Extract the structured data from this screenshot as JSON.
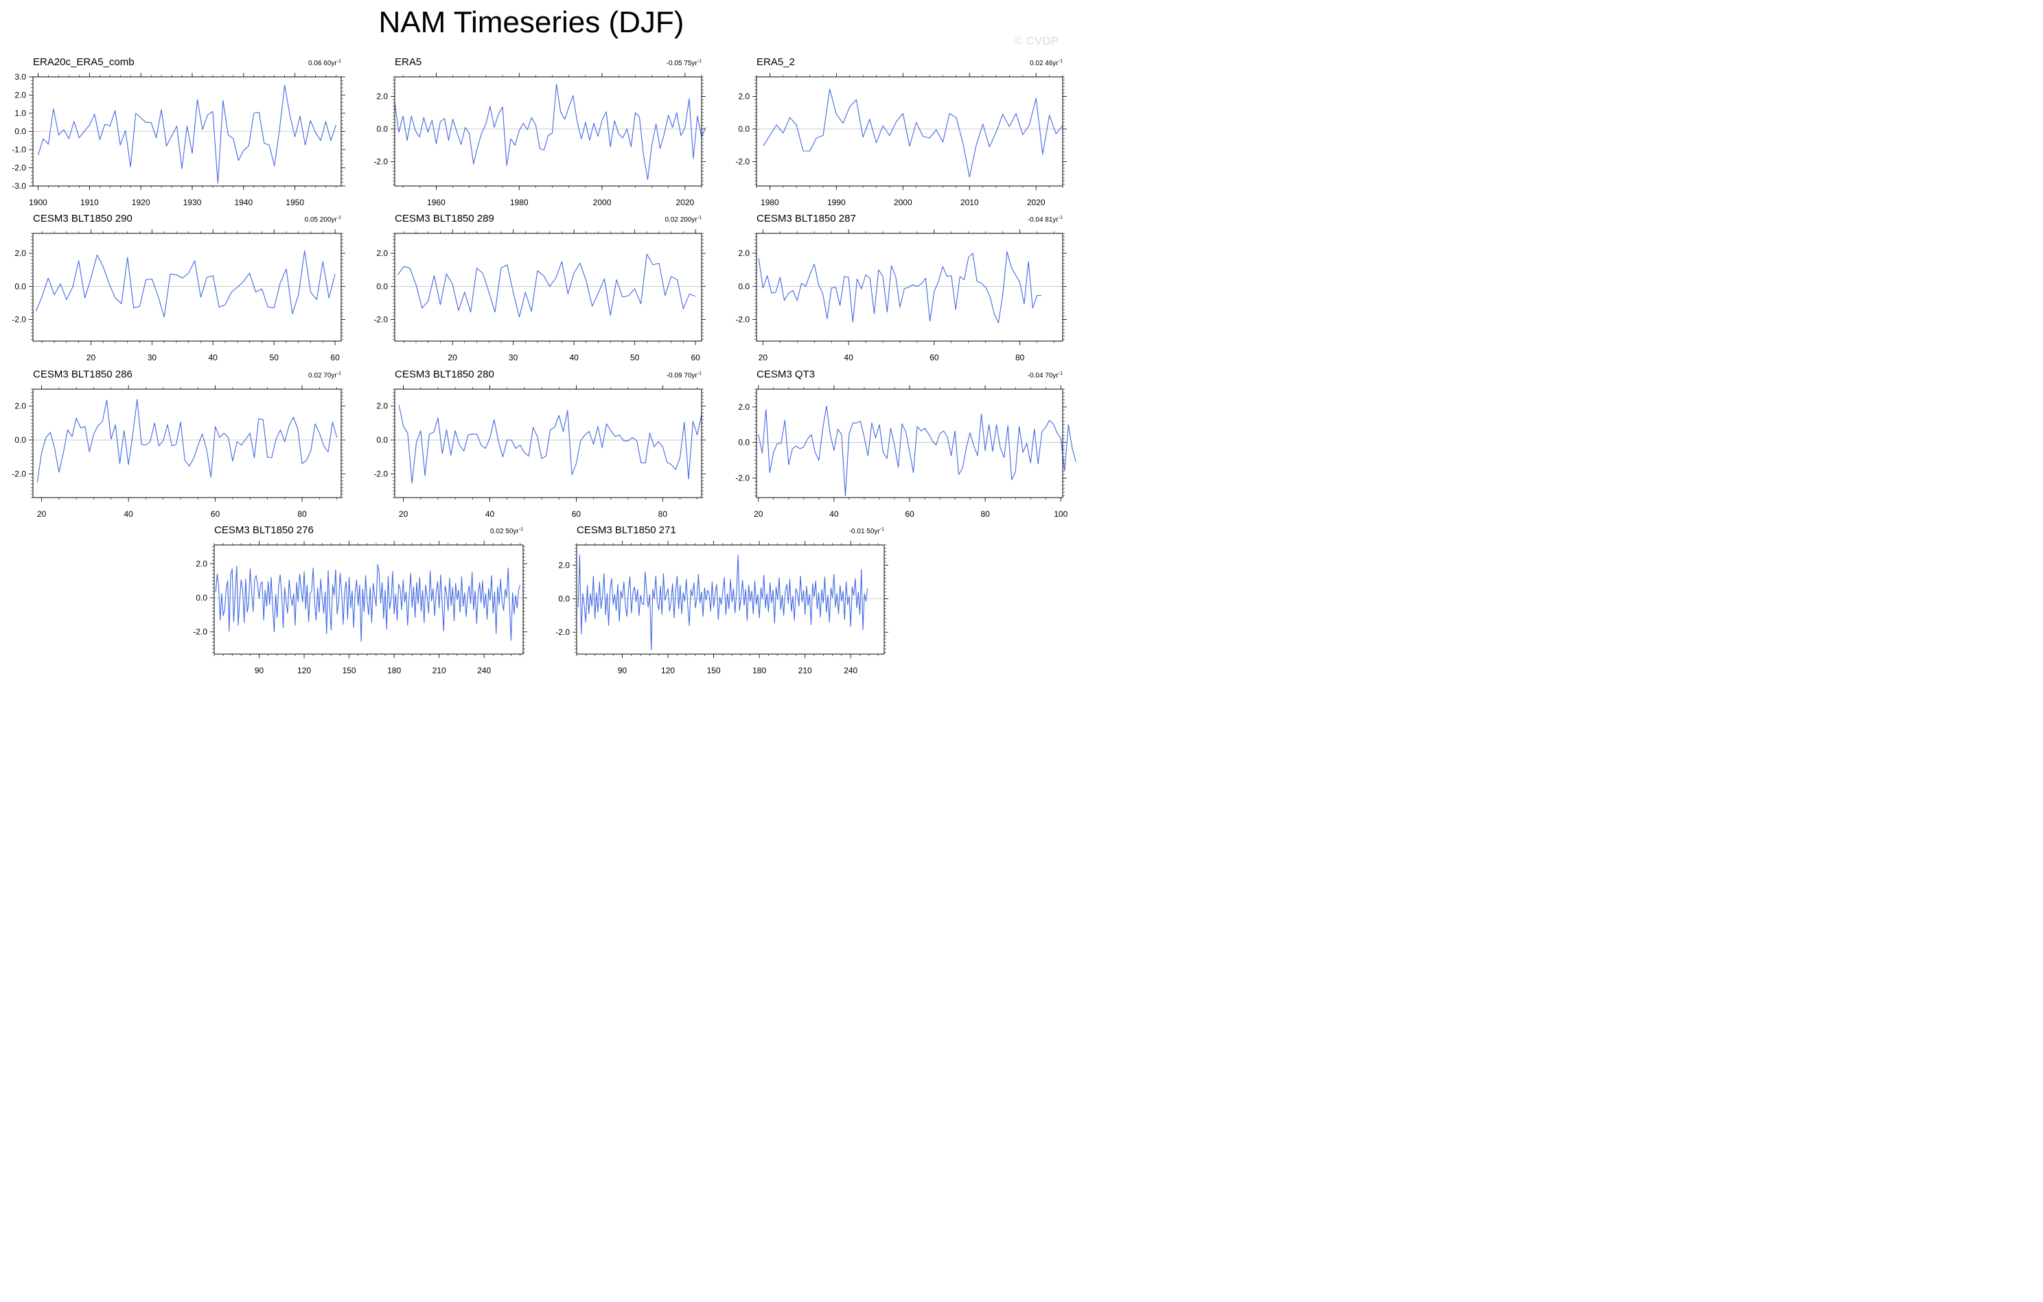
{
  "title": "NAM Timeseries (DJF)",
  "watermark": "© CVDP",
  "line_color": "#4169e1",
  "chart_data": [
    {
      "type": "line",
      "title": "ERA20c_ERA5_comb",
      "trend_value": "0.06 60",
      "trend_unit": "yr",
      "trend_exp": "-1",
      "x_start": 1900,
      "xlim": [
        1899,
        1959
      ],
      "xticks": [
        1900,
        1910,
        1920,
        1930,
        1940,
        1950
      ],
      "ylim": [
        -3.0,
        3.0
      ],
      "yticks": [
        -3.0,
        -2.0,
        -1.0,
        0.0,
        1.0,
        2.0,
        3.0
      ],
      "ytick_labels": [
        "-3.0",
        "-2.0",
        "-1.0",
        "0.0",
        "1.0",
        "2.0",
        "3.0"
      ],
      "values": [
        -1.3,
        -0.4,
        -0.7,
        1.25,
        -0.2,
        0.1,
        -0.4,
        0.55,
        -0.35,
        0.0,
        0.35,
        0.95,
        -0.45,
        0.4,
        0.3,
        1.15,
        -0.75,
        0.05,
        -1.95,
        1.0,
        0.75,
        0.5,
        0.5,
        -0.35,
        1.2,
        -0.8,
        -0.25,
        0.3,
        -2.05,
        0.3,
        -1.2,
        1.75,
        0.1,
        0.9,
        1.1,
        -2.85,
        1.7,
        -0.2,
        -0.4,
        -1.6,
        -1.05,
        -0.8,
        1.0,
        1.05,
        -0.65,
        -0.75,
        -1.9,
        0.1,
        2.55,
        0.9,
        -0.3,
        0.85,
        -0.75,
        0.6,
        -0.05,
        -0.5,
        0.55,
        -0.5,
        0.35
      ]
    },
    {
      "type": "line",
      "title": "ERA5",
      "trend_value": "-0.05 75",
      "trend_unit": "yr",
      "trend_exp": "-1",
      "x_start": 1950,
      "xlim": [
        1950,
        2024
      ],
      "xticks": [
        1960,
        1980,
        2000,
        2020
      ],
      "ylim": [
        -3.5,
        3.2
      ],
      "yticks": [
        -2.0,
        0.0,
        2.0
      ],
      "ytick_labels": [
        "-2.0",
        "0.0",
        "2.0"
      ],
      "values": [
        1.6,
        -0.2,
        0.8,
        -0.7,
        0.8,
        -0.1,
        -0.5,
        0.7,
        -0.2,
        0.55,
        -0.9,
        0.45,
        0.65,
        -0.7,
        0.6,
        -0.2,
        -0.95,
        0.1,
        -0.3,
        -2.15,
        -1.1,
        -0.2,
        0.3,
        1.4,
        0.1,
        0.9,
        1.35,
        -2.25,
        -0.6,
        -1.0,
        -0.1,
        0.35,
        -0.05,
        0.7,
        0.25,
        -1.2,
        -1.3,
        -0.4,
        -0.25,
        2.75,
        1.05,
        0.6,
        1.35,
        2.05,
        0.45,
        -0.6,
        0.4,
        -0.7,
        0.35,
        -0.45,
        0.55,
        1.05,
        -1.1,
        0.5,
        -0.3,
        -0.55,
        0.0,
        -1.1,
        1.0,
        0.75,
        -1.6,
        -3.1,
        -1.0,
        0.3,
        -1.2,
        -0.3,
        0.85,
        0.1,
        1.0,
        -0.4,
        0.1,
        1.85,
        -1.8,
        0.8,
        -0.5,
        0.1
      ]
    },
    {
      "type": "line",
      "title": "ERA5_2",
      "trend_value": "0.02 46",
      "trend_unit": "yr",
      "trend_exp": "-1",
      "x_start": 1979,
      "xlim": [
        1978,
        2024
      ],
      "xticks": [
        1980,
        1990,
        2000,
        2010,
        2020
      ],
      "ylim": [
        -3.5,
        3.2
      ],
      "yticks": [
        -2.0,
        0.0,
        2.0
      ],
      "ytick_labels": [
        "-2.0",
        "0.0",
        "2.0"
      ],
      "values": [
        -1.05,
        -0.4,
        0.25,
        -0.25,
        0.7,
        0.25,
        -1.35,
        -1.35,
        -0.55,
        -0.4,
        2.45,
        0.9,
        0.35,
        1.35,
        1.8,
        -0.5,
        0.6,
        -0.85,
        0.2,
        -0.4,
        0.45,
        0.95,
        -1.05,
        0.4,
        -0.45,
        -0.55,
        -0.05,
        -0.8,
        0.95,
        0.7,
        -0.85,
        -2.95,
        -1.0,
        0.3,
        -1.1,
        -0.2,
        0.9,
        0.15,
        0.95,
        -0.35,
        0.25,
        1.9,
        -1.55,
        0.85,
        -0.3,
        0.2
      ]
    },
    {
      "type": "line",
      "title": "CESM3 BLT1850 290",
      "trend_value": "0.05 200",
      "trend_unit": "yr",
      "trend_exp": "-1",
      "x_start": 11,
      "xlim": [
        10.5,
        61
      ],
      "xticks": [
        20,
        30,
        40,
        50,
        60
      ],
      "ylim": [
        -3.3,
        3.2
      ],
      "yticks": [
        -2.0,
        0.0,
        2.0
      ],
      "ytick_labels": [
        "-2.0",
        "0.0",
        "2.0"
      ],
      "values": [
        -1.5,
        -0.6,
        0.5,
        -0.5,
        0.15,
        -0.8,
        -0.05,
        1.55,
        -0.7,
        0.5,
        1.9,
        1.2,
        0.15,
        -0.7,
        -1.05,
        1.75,
        -1.3,
        -1.2,
        0.4,
        0.45,
        -0.6,
        -1.85,
        0.75,
        0.7,
        0.5,
        0.8,
        1.55,
        -0.65,
        0.55,
        0.65,
        -1.25,
        -1.1,
        -0.35,
        -0.05,
        0.3,
        0.8,
        -0.35,
        -0.15,
        -1.25,
        -1.3,
        0.2,
        1.05,
        -1.65,
        -0.5,
        2.15,
        -0.35,
        -0.8,
        1.5,
        -0.7,
        0.75
      ]
    },
    {
      "type": "line",
      "title": "CESM3 BLT1850 289",
      "trend_value": "0.02 200",
      "trend_unit": "yr",
      "trend_exp": "-1",
      "x_start": 11,
      "xlim": [
        10.5,
        61
      ],
      "xticks": [
        20,
        30,
        40,
        50,
        60
      ],
      "ylim": [
        -3.3,
        3.2
      ],
      "yticks": [
        -2.0,
        0.0,
        2.0
      ],
      "ytick_labels": [
        "-2.0",
        "0.0",
        "2.0"
      ],
      "values": [
        0.7,
        1.2,
        1.1,
        0.1,
        -1.3,
        -0.9,
        0.65,
        -1.1,
        0.75,
        0.15,
        -1.45,
        -0.35,
        -1.55,
        1.1,
        0.8,
        -0.35,
        -1.55,
        1.1,
        1.3,
        -0.35,
        -1.85,
        -0.35,
        -1.5,
        0.95,
        0.65,
        0.0,
        0.5,
        1.5,
        -0.45,
        0.8,
        1.4,
        0.35,
        -1.2,
        -0.4,
        0.45,
        -1.75,
        0.4,
        -0.65,
        -0.55,
        -0.15,
        -1.05,
        1.95,
        1.3,
        1.4,
        -0.55,
        0.6,
        0.4,
        -1.35,
        -0.45,
        -0.6
      ]
    },
    {
      "type": "line",
      "title": "CESM3 BLT1850 287",
      "trend_value": "-0.04 81",
      "trend_unit": "yr",
      "trend_exp": "-1",
      "x_start": 19,
      "xlim": [
        18.5,
        90
      ],
      "xticks": [
        20,
        40,
        60,
        80
      ],
      "ylim": [
        -3.3,
        3.2
      ],
      "yticks": [
        -2.0,
        0.0,
        2.0
      ],
      "ytick_labels": [
        "-2.0",
        "0.0",
        "2.0"
      ],
      "values": [
        1.7,
        -0.1,
        0.65,
        -0.4,
        -0.35,
        0.55,
        -0.85,
        -0.4,
        -0.25,
        -0.85,
        0.2,
        0.0,
        0.75,
        1.35,
        0.1,
        -0.45,
        -1.95,
        -0.1,
        -0.05,
        -1.15,
        0.6,
        0.55,
        -2.15,
        0.45,
        -0.15,
        0.7,
        0.5,
        -1.65,
        1.0,
        0.6,
        -1.55,
        1.25,
        0.6,
        -1.25,
        -0.15,
        -0.05,
        0.1,
        0.0,
        0.15,
        0.5,
        -2.1,
        -0.3,
        0.3,
        1.2,
        0.6,
        0.65,
        -1.4,
        0.6,
        0.4,
        1.75,
        2.0,
        0.3,
        0.2,
        -0.05,
        -0.6,
        -1.65,
        -2.2,
        -0.5,
        2.1,
        1.15,
        0.7,
        0.25,
        -1.05,
        1.5,
        -1.3,
        -0.55,
        -0.55
      ]
    },
    {
      "type": "line",
      "title": "CESM3 BLT1850 286",
      "trend_value": "0.02 70",
      "trend_unit": "yr",
      "trend_exp": "-1",
      "x_start": 19,
      "xlim": [
        18,
        89
      ],
      "xticks": [
        20,
        40,
        60,
        80
      ],
      "ylim": [
        -3.4,
        3.0
      ],
      "yticks": [
        -2.0,
        0.0,
        2.0
      ],
      "ytick_labels": [
        "-2.0",
        "0.0",
        "2.0"
      ],
      "values": [
        -2.5,
        -0.75,
        0.15,
        0.45,
        -0.5,
        -1.9,
        -0.75,
        0.6,
        0.2,
        1.3,
        0.7,
        0.8,
        -0.7,
        0.35,
        0.85,
        1.1,
        2.35,
        0.05,
        0.9,
        -1.4,
        0.55,
        -1.45,
        0.35,
        2.4,
        -0.25,
        -0.3,
        -0.1,
        1.0,
        -0.35,
        -0.05,
        0.9,
        -0.35,
        -0.25,
        1.05,
        -1.2,
        -1.55,
        -1.1,
        -0.35,
        0.35,
        -0.55,
        -2.2,
        0.8,
        0.15,
        0.4,
        0.15,
        -1.25,
        -0.1,
        -0.3,
        0.05,
        0.4,
        -1.05,
        1.25,
        1.2,
        -1.0,
        -1.05,
        0.05,
        0.6,
        -0.1,
        0.85,
        1.35,
        0.65,
        -1.4,
        -1.2,
        -0.65,
        0.95,
        0.4,
        -0.35,
        -0.7,
        1.05,
        0.15
      ]
    },
    {
      "type": "line",
      "title": "CESM3 BLT1850 280",
      "trend_value": "-0.09 70",
      "trend_unit": "yr",
      "trend_exp": "-1",
      "x_start": 19,
      "xlim": [
        18,
        89
      ],
      "xticks": [
        20,
        40,
        60,
        80
      ],
      "ylim": [
        -3.4,
        3.0
      ],
      "yticks": [
        -2.0,
        0.0,
        2.0
      ],
      "ytick_labels": [
        "-2.0",
        "0.0",
        "2.0"
      ],
      "values": [
        2.05,
        0.8,
        0.4,
        -2.55,
        -0.15,
        0.55,
        -2.1,
        0.35,
        0.45,
        1.3,
        -0.8,
        0.6,
        -0.9,
        0.55,
        -0.3,
        -0.65,
        0.3,
        0.35,
        0.35,
        -0.3,
        -0.5,
        0.1,
        1.2,
        -0.1,
        -1.0,
        0.0,
        0.0,
        -0.5,
        -0.3,
        -0.75,
        -0.95,
        0.75,
        0.2,
        -1.1,
        -0.95,
        0.6,
        0.75,
        1.45,
        0.5,
        1.75,
        -2.05,
        -1.4,
        -0.05,
        0.3,
        0.5,
        -0.25,
        0.8,
        -0.45,
        0.95,
        0.55,
        0.2,
        0.3,
        -0.05,
        -0.05,
        0.15,
        -0.05,
        -1.35,
        -1.35,
        0.4,
        -0.4,
        -0.1,
        -0.4,
        -1.3,
        -1.45,
        -1.75,
        -1.05,
        1.05,
        -2.3,
        1.1,
        0.3,
        1.5
      ]
    },
    {
      "type": "line",
      "title": "CESM3 QT3",
      "trend_value": "-0.04 70",
      "trend_unit": "yr",
      "trend_exp": "-1",
      "x_start": 20,
      "xlim": [
        19.5,
        100.5
      ],
      "xticks": [
        20,
        40,
        60,
        80,
        100
      ],
      "ylim": [
        -3.1,
        3.0
      ],
      "yticks": [
        -2.0,
        0.0,
        2.0
      ],
      "ytick_labels": [
        "-2.0",
        "0.0",
        "2.0"
      ],
      "values": [
        0.45,
        -0.6,
        1.85,
        -1.7,
        -0.55,
        -0.05,
        -0.05,
        1.25,
        -1.25,
        -0.35,
        -0.2,
        -0.35,
        -0.25,
        0.2,
        0.45,
        -0.55,
        -1.0,
        0.75,
        2.05,
        0.45,
        -0.45,
        0.75,
        0.45,
        -3.0,
        0.5,
        1.1,
        1.1,
        1.2,
        0.3,
        -0.75,
        1.1,
        0.25,
        1.0,
        -0.55,
        -0.9,
        0.8,
        -0.15,
        -1.4,
        1.05,
        0.6,
        -0.5,
        -1.7,
        0.9,
        0.65,
        0.8,
        0.5,
        0.1,
        -0.15,
        0.5,
        0.65,
        0.3,
        -0.75,
        0.65,
        -1.8,
        -1.45,
        -0.3,
        0.55,
        -0.2,
        -0.75,
        1.6,
        -0.45,
        1.0,
        -0.5,
        1.0,
        -0.3,
        -0.85,
        0.95,
        -2.1,
        -1.65,
        0.9,
        -0.55,
        -0.05,
        -1.15,
        0.75,
        -1.2,
        0.6,
        0.85,
        1.25,
        1.05,
        0.55,
        0.25,
        -1.6,
        1.0,
        -0.3,
        -1.1
      ]
    },
    {
      "type": "line",
      "title": "CESM3 BLT1850 276",
      "trend_value": "0.02 50",
      "trend_unit": "yr",
      "trend_exp": "-1",
      "x_start": 61,
      "xlim": [
        60,
        266
      ],
      "xticks": [
        90,
        120,
        150,
        180,
        210,
        240
      ],
      "ylim": [
        -3.3,
        3.1
      ],
      "yticks": [
        -2.0,
        0.0,
        2.0
      ],
      "ytick_labels": [
        "-2.0",
        "0.0",
        "2.0"
      ],
      "values": [
        0.35,
        1.4,
        0.6,
        -1.3,
        0.25,
        -1.05,
        -0.7,
        0.55,
        1.0,
        -1.95,
        1.35,
        1.7,
        -1.4,
        0.3,
        1.85,
        -1.6,
        -0.15,
        1.05,
        0.45,
        -1.45,
        1.1,
        -0.85,
        -0.3,
        1.7,
        0.35,
        -0.8,
        1.15,
        1.3,
        0.75,
        -0.05,
        0.8,
        0.95,
        -1.3,
        0.45,
        -0.5,
        0.95,
        -0.4,
        1.2,
        -0.6,
        -2.0,
        0.2,
        -1.15,
        0.7,
        1.35,
        0.25,
        -1.75,
        0.6,
        -0.3,
        -0.9,
        1.05,
        0.1,
        -0.45,
        0.25,
        -1.6,
        0.9,
        -0.2,
        1.4,
        0.5,
        -0.25,
        1.55,
        -0.65,
        0.75,
        -1.4,
        0.25,
        0.4,
        1.75,
        -0.35,
        -1.3,
        0.6,
        -0.85,
        1.1,
        0.05,
        -0.9,
        0.35,
        -2.1,
        1.6,
        -0.5,
        -1.9,
        0.75,
        0.15,
        1.65,
        -0.95,
        -0.25,
        1.45,
        0.3,
        -1.55,
        0.35,
        0.95,
        -1.25,
        1.2,
        -0.6,
        0.4,
        -1.75,
        0.3,
        1.05,
        -0.45,
        0.75,
        -2.55,
        0.5,
        -0.8,
        1.3,
        -0.15,
        -1.0,
        0.6,
        -1.45,
        0.85,
        0.15,
        -0.5,
        1.95,
        1.5,
        -0.3,
        0.9,
        -1.2,
        0.45,
        -1.85,
        1.25,
        -0.65,
        -0.1,
        1.55,
        -0.95,
        0.2,
        -1.3,
        0.8,
        0.55,
        -0.7,
        1.05,
        -0.25,
        0.35,
        -1.6,
        0.1,
        1.45,
        -0.55,
        0.65,
        -1.15,
        0.9,
        -0.35,
        1.2,
        -0.8,
        0.45,
        -1.45,
        0.75,
        0.05,
        -0.9,
        1.6,
        -0.2,
        0.55,
        -1.05,
        0.3,
        0.95,
        -0.6,
        1.35,
        -0.25,
        -1.95,
        0.7,
        0.2,
        -0.75,
        1.15,
        -0.45,
        0.6,
        -1.35,
        0.85,
        -0.1,
        0.45,
        -0.85,
        1.25,
        -0.5,
        0.3,
        -1.1,
        0.15,
        0.7,
        -0.35,
        1.5,
        -0.7,
        0.4,
        -1.5,
        0.2,
        0.9,
        -0.3,
        1.0,
        -0.6,
        0.25,
        -1.25,
        0.55,
        -0.15,
        1.3,
        -0.9,
        0.35,
        -2.1,
        0.65,
        -0.4,
        1.1,
        -0.25,
        -0.75,
        0.5,
        0.05,
        1.75,
        -0.55,
        -2.5,
        0.3,
        -0.95,
        0.15,
        -0.6,
        0.45,
        0.75
      ]
    },
    {
      "type": "line",
      "title": "CESM3 BLT1850 271",
      "trend_value": "-0.01 50",
      "trend_unit": "yr",
      "trend_exp": "-1",
      "x_start": 61,
      "xlim": [
        60,
        262
      ],
      "xticks": [
        90,
        120,
        150,
        180,
        210,
        240
      ],
      "ylim": [
        -3.3,
        3.2
      ],
      "yticks": [
        -2.0,
        0.0,
        2.0
      ],
      "ytick_labels": [
        "-2.0",
        "0.0",
        "2.0"
      ],
      "values": [
        -0.5,
        2.6,
        -2.1,
        0.3,
        -0.4,
        -1.4,
        0.8,
        -0.9,
        0.3,
        -0.45,
        1.35,
        -1.2,
        0.35,
        -0.8,
        1.0,
        -0.6,
        0.15,
        1.5,
        -0.95,
        0.3,
        -1.6,
        0.6,
        1.2,
        -0.35,
        0.25,
        -0.7,
        0.85,
        -1.35,
        0.45,
        0.05,
        1.0,
        -0.4,
        -1.05,
        0.5,
        1.3,
        -0.85,
        0.4,
        0.7,
        -0.2,
        0.55,
        -1.0,
        0.2,
        -0.3,
        -0.35,
        1.6,
        0.35,
        -0.5,
        0.25,
        -3.05,
        0.55,
        0.0,
        1.35,
        -0.25,
        -0.65,
        0.75,
        -0.95,
        1.5,
        -0.1,
        0.25,
        0.6,
        -0.75,
        -0.15,
        0.9,
        -1.15,
        0.45,
        1.35,
        -0.6,
        0.8,
        -0.9,
        0.35,
        -0.15,
        1.15,
        -0.45,
        -1.6,
        0.55,
        0.15,
        0.95,
        -0.55,
        0.05,
        1.45,
        -0.25,
        0.4,
        -1.05,
        0.65,
        -0.1,
        0.5,
        0.25,
        -0.75,
        1.0,
        -0.5,
        0.3,
        0.85,
        -1.25,
        0.1,
        -0.35,
        0.45,
        1.25,
        -0.95,
        0.3,
        -0.6,
        1.15,
        -0.2,
        0.6,
        -0.85,
        0.35,
        2.6,
        -0.7,
        0.15,
        1.1,
        -0.4,
        0.55,
        -1.3,
        0.8,
        -0.15,
        0.45,
        -0.9,
        1.05,
        -0.35,
        0.25,
        -1.15,
        0.65,
        0.0,
        1.4,
        -0.55,
        0.3,
        -0.8,
        0.95,
        -0.25,
        0.5,
        -1.45,
        0.7,
        -0.05,
        1.25,
        -0.65,
        0.2,
        -1.0,
        0.4,
        0.85,
        -0.3,
        1.15,
        -0.75,
        0.15,
        -1.3,
        0.6,
        0.3,
        -0.45,
        1.35,
        -0.2,
        0.5,
        -0.95,
        0.75,
        -0.4,
        0.25,
        -1.55,
        0.9,
        0.1,
        1.05,
        -0.6,
        0.35,
        -1.1,
        0.55,
        -0.25,
        1.3,
        -0.8,
        0.2,
        -1.4,
        0.65,
        0.05,
        1.45,
        -0.5,
        0.3,
        -0.9,
        0.8,
        -0.15,
        0.45,
        -1.25,
        1.0,
        -0.35,
        0.15,
        -1.65,
        0.7,
        0.2,
        1.2,
        -0.55,
        0.4,
        -0.95,
        1.75,
        -1.85,
        0.3,
        -0.15,
        0.6
      ]
    }
  ]
}
